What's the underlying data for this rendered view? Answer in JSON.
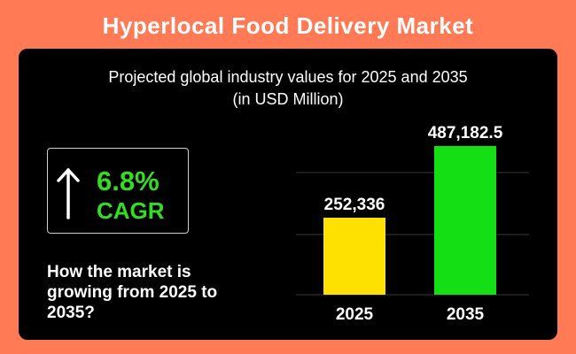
{
  "header": {
    "title": "Hyperlocal Food Delivery Market"
  },
  "panel": {
    "subtitle_line1": "Projected global industry values for 2025 and 2035",
    "subtitle_line2": "(in USD Million)"
  },
  "cagr": {
    "value": "6.8%",
    "label": "CAGR",
    "icon": "arrow-up-icon"
  },
  "question": "How the market is growing from 2025 to 2035?",
  "colors": {
    "background": "#FF7A55",
    "panel": "#000000",
    "accent_green": "#33DD22"
  },
  "chart_data": {
    "type": "bar",
    "categories": [
      "2025",
      "2035"
    ],
    "values": [
      252336,
      487182.5
    ],
    "value_labels": [
      "252,336",
      "487,182.5"
    ],
    "colors": [
      "#FFE100",
      "#14DE14"
    ],
    "title": "Projected global industry values for 2025 and 2035",
    "subtitle": "(in USD Million)",
    "xlabel": "",
    "ylabel": "",
    "ylim": [
      0,
      487182.5
    ],
    "grid": true
  }
}
